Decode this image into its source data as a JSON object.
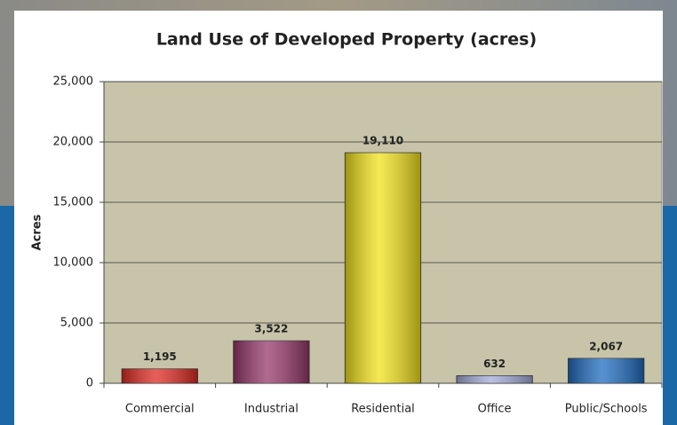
{
  "chart_data": {
    "type": "bar",
    "title": "Land Use of Developed Property (acres)",
    "y_label": "Acres",
    "categories": [
      "Commercial",
      "Industrial",
      "Residential",
      "Office",
      "Public/Schools"
    ],
    "values": [
      1195,
      3522,
      19110,
      632,
      2067
    ],
    "value_labels": [
      "1,195",
      "3,522",
      "19,110",
      "632",
      "2,067"
    ],
    "colors": [
      "#e02a22",
      "#96386a",
      "#f2e21c",
      "#a3abd8",
      "#1f6cc0"
    ],
    "ylim": [
      0,
      25000
    ],
    "yticks": [
      0,
      {
        "value": 5000,
        "label": "5,000"
      },
      {
        "value": 10000,
        "label": "10,000"
      },
      {
        "value": 15000,
        "label": "15,000"
      },
      {
        "value": 20000,
        "label": "20,000"
      },
      {
        "value": 25000,
        "label": "25,000"
      }
    ],
    "grid": true
  }
}
